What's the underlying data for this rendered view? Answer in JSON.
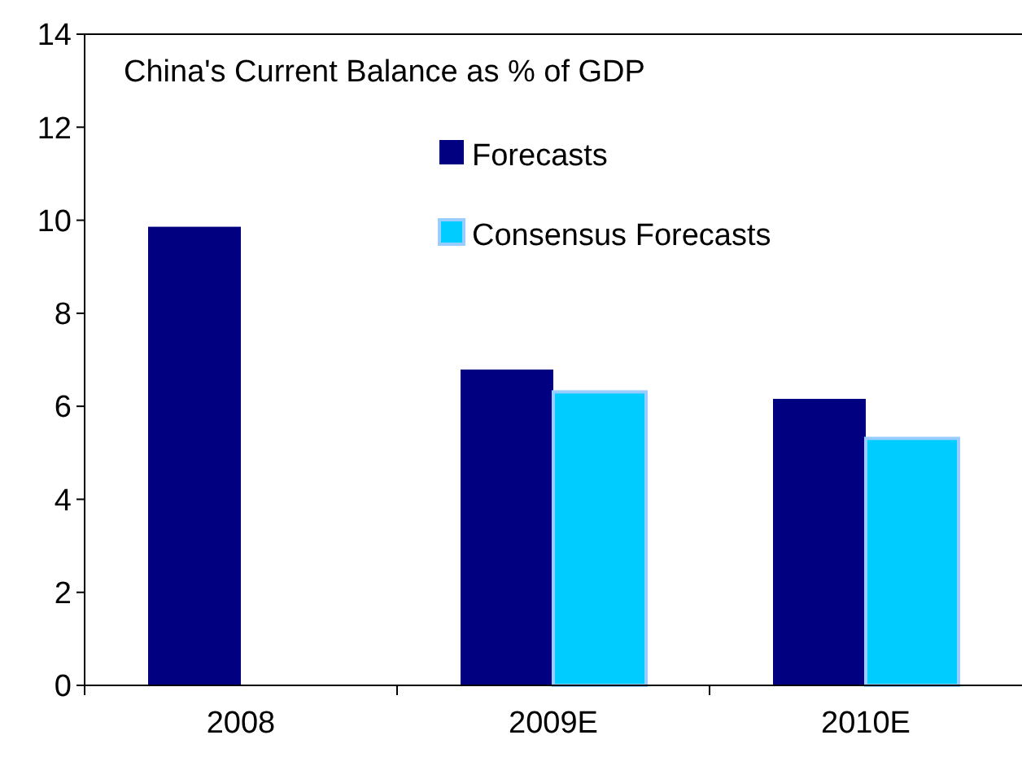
{
  "chart_data": {
    "type": "bar",
    "title": "China's Current Balance as % of GDP",
    "categories": [
      "2008",
      "2009E",
      "2010E"
    ],
    "series": [
      {
        "name": "Forecasts",
        "color": "#000080",
        "values": [
          9.86,
          6.79,
          6.16
        ]
      },
      {
        "name": "Consensus Forecasts",
        "color": "#00ccff",
        "values": [
          null,
          6.31,
          5.31
        ]
      }
    ],
    "ylim": [
      0,
      14
    ],
    "yticks": [
      0,
      2,
      4,
      6,
      8,
      10,
      12,
      14
    ],
    "grid": false,
    "legend": "top"
  }
}
